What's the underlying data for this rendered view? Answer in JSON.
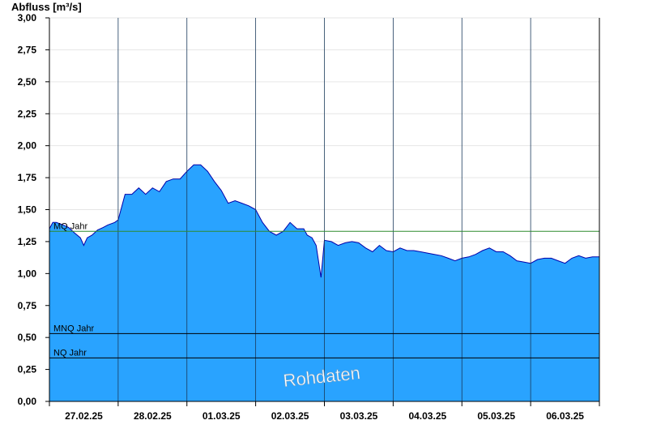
{
  "chart_data": {
    "type": "area",
    "ylabel": "Abfluss [m³/s]",
    "ylim": [
      0,
      3.0
    ],
    "yticks": [
      "0,00",
      "0,25",
      "0,50",
      "0,75",
      "1,00",
      "1,25",
      "1,50",
      "1,75",
      "2,00",
      "2,25",
      "2,50",
      "2,75",
      "3,00"
    ],
    "xticks": [
      "27.02.25",
      "28.02.25",
      "01.03.25",
      "02.03.25",
      "03.03.25",
      "04.03.25",
      "05.03.25",
      "06.03.25"
    ],
    "grid": true,
    "fill_color": "#29a3ff",
    "line_color": "#0000aa",
    "reference_lines": [
      {
        "label": "MQ Jahr",
        "value": 1.33,
        "color": "#2e8b2e"
      },
      {
        "label": "MNQ Jahr",
        "value": 0.53,
        "color": "#000000"
      },
      {
        "label": "NQ Jahr",
        "value": 0.34,
        "color": "#000000"
      }
    ],
    "watermark": "Rohdaten",
    "series": [
      {
        "x": [
          0,
          0.05,
          0.1,
          0.2,
          0.28,
          0.36,
          0.45,
          0.5,
          0.55,
          0.62,
          0.7,
          0.78,
          0.85,
          0.95,
          1.0,
          1.1,
          1.2,
          1.3,
          1.4,
          1.5,
          1.6,
          1.7,
          1.8,
          1.9,
          2.0,
          2.1,
          2.2,
          2.3,
          2.4,
          2.5,
          2.6,
          2.7,
          2.8,
          2.9,
          3.0,
          3.1,
          3.2,
          3.3,
          3.4,
          3.5,
          3.6,
          3.7,
          3.75,
          3.82,
          3.88,
          3.95,
          4.0,
          4.1,
          4.2,
          4.3,
          4.4,
          4.5,
          4.6,
          4.7,
          4.8,
          4.9,
          5.0,
          5.1,
          5.2,
          5.3,
          5.4,
          5.5,
          5.6,
          5.7,
          5.8,
          5.9,
          6.0,
          6.1,
          6.2,
          6.3,
          6.4,
          6.5,
          6.6,
          6.7,
          6.8,
          6.9,
          7.0,
          7.1,
          7.2,
          7.3,
          7.4,
          7.5,
          7.6,
          7.7,
          7.8,
          7.9,
          7.98
        ],
        "y": [
          1.35,
          1.4,
          1.4,
          1.38,
          1.36,
          1.32,
          1.28,
          1.22,
          1.28,
          1.3,
          1.34,
          1.36,
          1.38,
          1.4,
          1.42,
          1.62,
          1.62,
          1.67,
          1.62,
          1.67,
          1.64,
          1.72,
          1.74,
          1.74,
          1.8,
          1.85,
          1.85,
          1.8,
          1.72,
          1.65,
          1.55,
          1.57,
          1.55,
          1.53,
          1.5,
          1.4,
          1.33,
          1.3,
          1.33,
          1.4,
          1.35,
          1.35,
          1.3,
          1.28,
          1.22,
          0.97,
          1.26,
          1.25,
          1.22,
          1.24,
          1.25,
          1.24,
          1.2,
          1.17,
          1.22,
          1.18,
          1.17,
          1.2,
          1.18,
          1.18,
          1.17,
          1.16,
          1.15,
          1.14,
          1.12,
          1.1,
          1.12,
          1.13,
          1.15,
          1.18,
          1.2,
          1.17,
          1.17,
          1.14,
          1.1,
          1.09,
          1.08,
          1.11,
          1.12,
          1.12,
          1.1,
          1.08,
          1.12,
          1.14,
          1.12,
          1.13,
          1.13
        ]
      }
    ]
  }
}
